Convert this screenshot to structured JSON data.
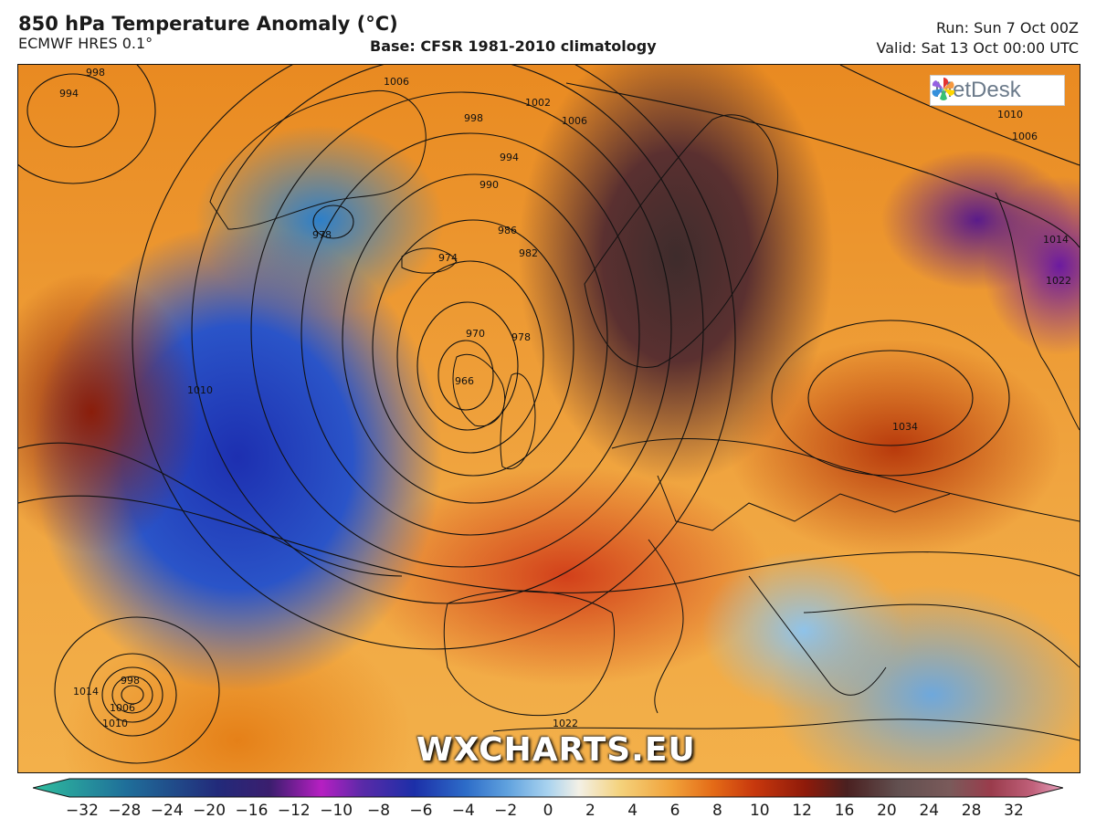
{
  "header": {
    "title": "850 hPa Temperature Anomaly (°C)",
    "model": "ECMWF HRES 0.1°",
    "base": "Base: CFSR 1981-2010 climatology",
    "run": "Run: Sun 7 Oct 00Z",
    "valid": "Valid: Sat 13 Oct 00:00 UTC"
  },
  "logo": {
    "text": "MetDesk"
  },
  "watermark": "WXCHARTS.EU",
  "isobar_labels": [
    "994",
    "998",
    "1006",
    "1002",
    "1006",
    "998",
    "994",
    "990",
    "986",
    "982",
    "978",
    "974",
    "970",
    "966",
    "978",
    "1010",
    "1034",
    "1010",
    "1006",
    "1014",
    "1022",
    "1014",
    "998",
    "1006",
    "1010",
    "1022"
  ],
  "colorbar": {
    "ticks": [
      "−32",
      "−28",
      "−24",
      "−20",
      "−16",
      "−12",
      "−10",
      "−8",
      "−6",
      "−4",
      "−2",
      "0",
      "2",
      "4",
      "6",
      "8",
      "10",
      "12",
      "16",
      "20",
      "24",
      "28",
      "32"
    ],
    "colors": [
      "#2fbf9e",
      "#1f6f9a",
      "#222a7a",
      "#3b1e6e",
      "#7b1a9e",
      "#b61fc2",
      "#5a2aa8",
      "#1c2fa8",
      "#2d6cc8",
      "#5fa1de",
      "#a9d3ef",
      "#f3f0e6",
      "#f4d27c",
      "#f1a23a",
      "#e46b17",
      "#c8380d",
      "#8e1a0a",
      "#4a2020",
      "#625050",
      "#7a5a5a",
      "#9a3c4c",
      "#c0607a",
      "#e6a0bc"
    ]
  },
  "colors": {
    "isobar": "#111111",
    "border": "#111111"
  }
}
